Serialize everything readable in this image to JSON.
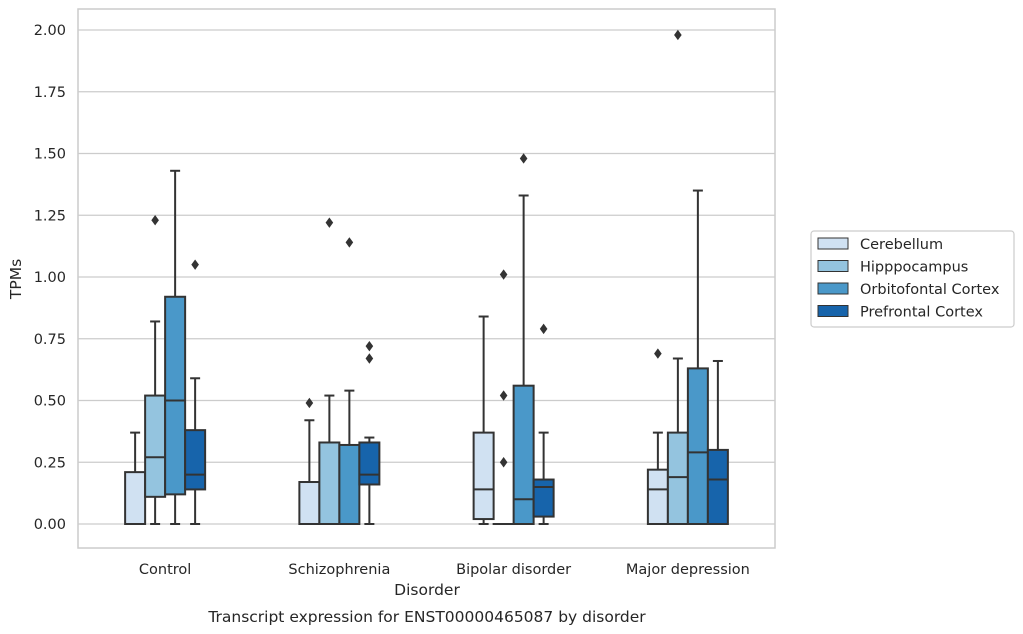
{
  "chart_data": {
    "type": "box",
    "caption": "Transcript expression for ENST00000465087 by disorder",
    "xlabel": "Disorder",
    "ylabel": "TPMs",
    "ylim": [
      -0.1,
      2.08
    ],
    "yticks": [
      "0.00",
      "0.25",
      "0.50",
      "0.75",
      "1.00",
      "1.25",
      "1.50",
      "1.75",
      "2.00"
    ],
    "grid": "horizontal",
    "legend_position": "right",
    "categories": [
      "Control",
      "Schizophrenia",
      "Bipolar disorder",
      "Major depression"
    ],
    "series": [
      {
        "name": "Cerebellum",
        "color": "#d0e1f2",
        "boxes": [
          {
            "whislo": 0.0,
            "q1": 0.0,
            "med": 0.0,
            "q3": 0.21,
            "whishi": 0.37,
            "fliers": []
          },
          {
            "whislo": 0.0,
            "q1": 0.0,
            "med": 0.0,
            "q3": 0.17,
            "whishi": 0.42,
            "fliers": [
              0.49
            ]
          },
          {
            "whislo": 0.0,
            "q1": 0.02,
            "med": 0.14,
            "q3": 0.37,
            "whishi": 0.84,
            "fliers": []
          },
          {
            "whislo": 0.0,
            "q1": 0.0,
            "med": 0.14,
            "q3": 0.22,
            "whishi": 0.37,
            "fliers": [
              0.69
            ]
          }
        ]
      },
      {
        "name": "Hipppocampus",
        "color": "#94c4df",
        "boxes": [
          {
            "whislo": 0.0,
            "q1": 0.11,
            "med": 0.27,
            "q3": 0.52,
            "whishi": 0.82,
            "fliers": [
              1.23
            ]
          },
          {
            "whislo": 0.0,
            "q1": 0.0,
            "med": 0.0,
            "q3": 0.33,
            "whishi": 0.52,
            "fliers": [
              1.22
            ]
          },
          {
            "whislo": 0.0,
            "q1": 0.0,
            "med": 0.0,
            "q3": 0.0,
            "whishi": 0.0,
            "fliers": [
              0.25,
              0.52,
              1.01
            ]
          },
          {
            "whislo": 0.0,
            "q1": 0.0,
            "med": 0.19,
            "q3": 0.37,
            "whishi": 0.67,
            "fliers": [
              1.98
            ]
          }
        ]
      },
      {
        "name": "Orbitofontal Cortex",
        "color": "#4a98c9",
        "boxes": [
          {
            "whislo": 0.0,
            "q1": 0.12,
            "med": 0.5,
            "q3": 0.92,
            "whishi": 1.43,
            "fliers": []
          },
          {
            "whislo": 0.0,
            "q1": 0.0,
            "med": 0.0,
            "q3": 0.32,
            "whishi": 0.54,
            "fliers": [
              1.14
            ]
          },
          {
            "whislo": 0.0,
            "q1": 0.0,
            "med": 0.1,
            "q3": 0.56,
            "whishi": 1.33,
            "fliers": [
              1.48
            ]
          },
          {
            "whislo": 0.0,
            "q1": 0.0,
            "med": 0.29,
            "q3": 0.63,
            "whishi": 1.35,
            "fliers": []
          }
        ]
      },
      {
        "name": "Prefrontal Cortex",
        "color": "#1764ab",
        "boxes": [
          {
            "whislo": 0.0,
            "q1": 0.14,
            "med": 0.2,
            "q3": 0.38,
            "whishi": 0.59,
            "fliers": [
              1.05
            ]
          },
          {
            "whislo": 0.0,
            "q1": 0.16,
            "med": 0.2,
            "q3": 0.33,
            "whishi": 0.35,
            "fliers": [
              0.67,
              0.72
            ]
          },
          {
            "whislo": 0.0,
            "q1": 0.03,
            "med": 0.15,
            "q3": 0.18,
            "whishi": 0.37,
            "fliers": [
              0.79
            ]
          },
          {
            "whislo": 0.0,
            "q1": 0.0,
            "med": 0.18,
            "q3": 0.3,
            "whishi": 0.66,
            "fliers": []
          }
        ]
      }
    ]
  }
}
